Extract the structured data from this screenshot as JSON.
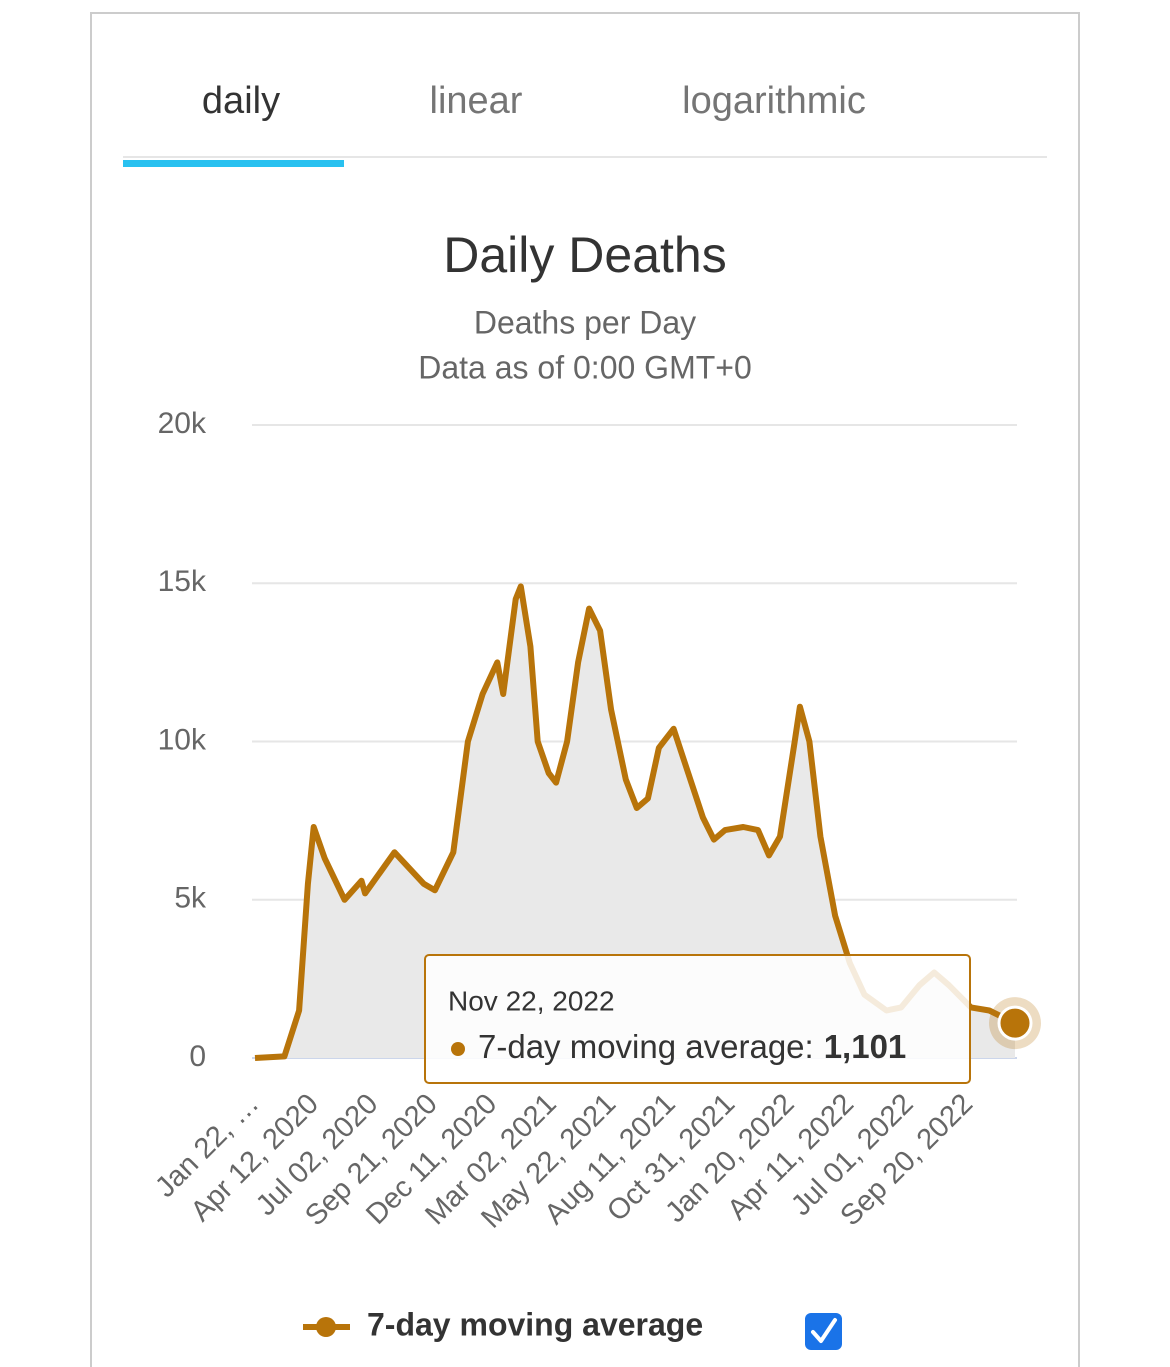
{
  "tabs": {
    "items": [
      "daily",
      "linear",
      "logarithmic"
    ],
    "active": 0
  },
  "chart_data": {
    "type": "line",
    "title": "Daily Deaths",
    "subtitle": [
      "Deaths per Day",
      "Data as of 0:00 GMT+0"
    ],
    "x": [
      "Jan 22, 2020",
      "Mar 2, 2020",
      "Mar 22, 2020",
      "Apr 3, 2020",
      "Apr 11, 2020",
      "Apr 26, 2020",
      "May 23, 2020",
      "Jun 15, 2020",
      "Jun 20, 2020",
      "Jul 30, 2020",
      "Sep 8, 2020",
      "Sep 23, 2020",
      "Oct 18, 2020",
      "Nov 7, 2020",
      "Nov 27, 2020",
      "Dec 17, 2020",
      "Dec 25, 2020",
      "Jan 11, 2021",
      "Jan 18, 2021",
      "Jan 31, 2021",
      "Feb 10, 2021",
      "Feb 25, 2021",
      "Mar 7, 2021",
      "Mar 22, 2021",
      "Apr 6, 2021",
      "Apr 21, 2021",
      "May 6, 2021",
      "May 21, 2021",
      "Jun 10, 2021",
      "Jun 25, 2021",
      "Jul 10, 2021",
      "Jul 25, 2021",
      "Aug 14, 2021",
      "Sep 3, 2021",
      "Sep 23, 2021",
      "Oct 8, 2021",
      "Oct 23, 2021",
      "Nov 17, 2021",
      "Dec 7, 2021",
      "Dec 22, 2021",
      "Jan 6, 2022",
      "Jan 26, 2022",
      "Feb 2, 2022",
      "Feb 15, 2022",
      "Mar 2, 2022",
      "Mar 22, 2022",
      "Apr 11, 2022",
      "May 1, 2022",
      "May 31, 2022",
      "Jun 20, 2022",
      "Jul 15, 2022",
      "Aug 4, 2022",
      "Aug 24, 2022",
      "Sep 23, 2022",
      "Oct 18, 2022",
      "Nov 22, 2022"
    ],
    "series": [
      {
        "name": "7-day moving average",
        "color": "#b8740a",
        "values": [
          0,
          50,
          1500,
          5500,
          7300,
          6300,
          5000,
          5600,
          5200,
          6500,
          5500,
          5300,
          6500,
          10000,
          11500,
          12500,
          11500,
          14500,
          14900,
          13000,
          10000,
          9000,
          8700,
          10000,
          12500,
          14200,
          13500,
          11000,
          8800,
          7900,
          8200,
          9800,
          10400,
          9000,
          7600,
          6900,
          7200,
          7300,
          7200,
          6400,
          7000,
          10000,
          11100,
          10000,
          7000,
          4500,
          3000,
          2000,
          1500,
          1600,
          2300,
          2700,
          2300,
          1600,
          1500,
          1101
        ]
      }
    ],
    "xlim": [
      "Jan 22, 2020",
      "Nov 22, 2022"
    ],
    "xticks": [
      {
        "value": "Jan 22, 2020",
        "label": "Jan 22, …"
      },
      "Apr 12, 2020",
      "Jul 02, 2020",
      "Sep 21, 2020",
      "Dec 11, 2020",
      "Mar 02, 2021",
      "May 22, 2021",
      "Aug 11, 2021",
      "Oct 31, 2021",
      "Jan 20, 2022",
      "Apr 11, 2022",
      "Jul 01, 2022",
      "Sep 20, 2022"
    ],
    "ylim": [
      0,
      20000
    ],
    "yticks": [
      0,
      {
        "value": 5000,
        "label": "5k"
      },
      {
        "value": 10000,
        "label": "10k"
      },
      {
        "value": 15000,
        "label": "15k"
      },
      {
        "value": 20000,
        "label": "20k"
      }
    ],
    "grid": true,
    "tooltip": {
      "x": "Nov 22, 2022",
      "label": "7-day moving average:",
      "value": "1,101"
    },
    "legend_checked": true
  }
}
